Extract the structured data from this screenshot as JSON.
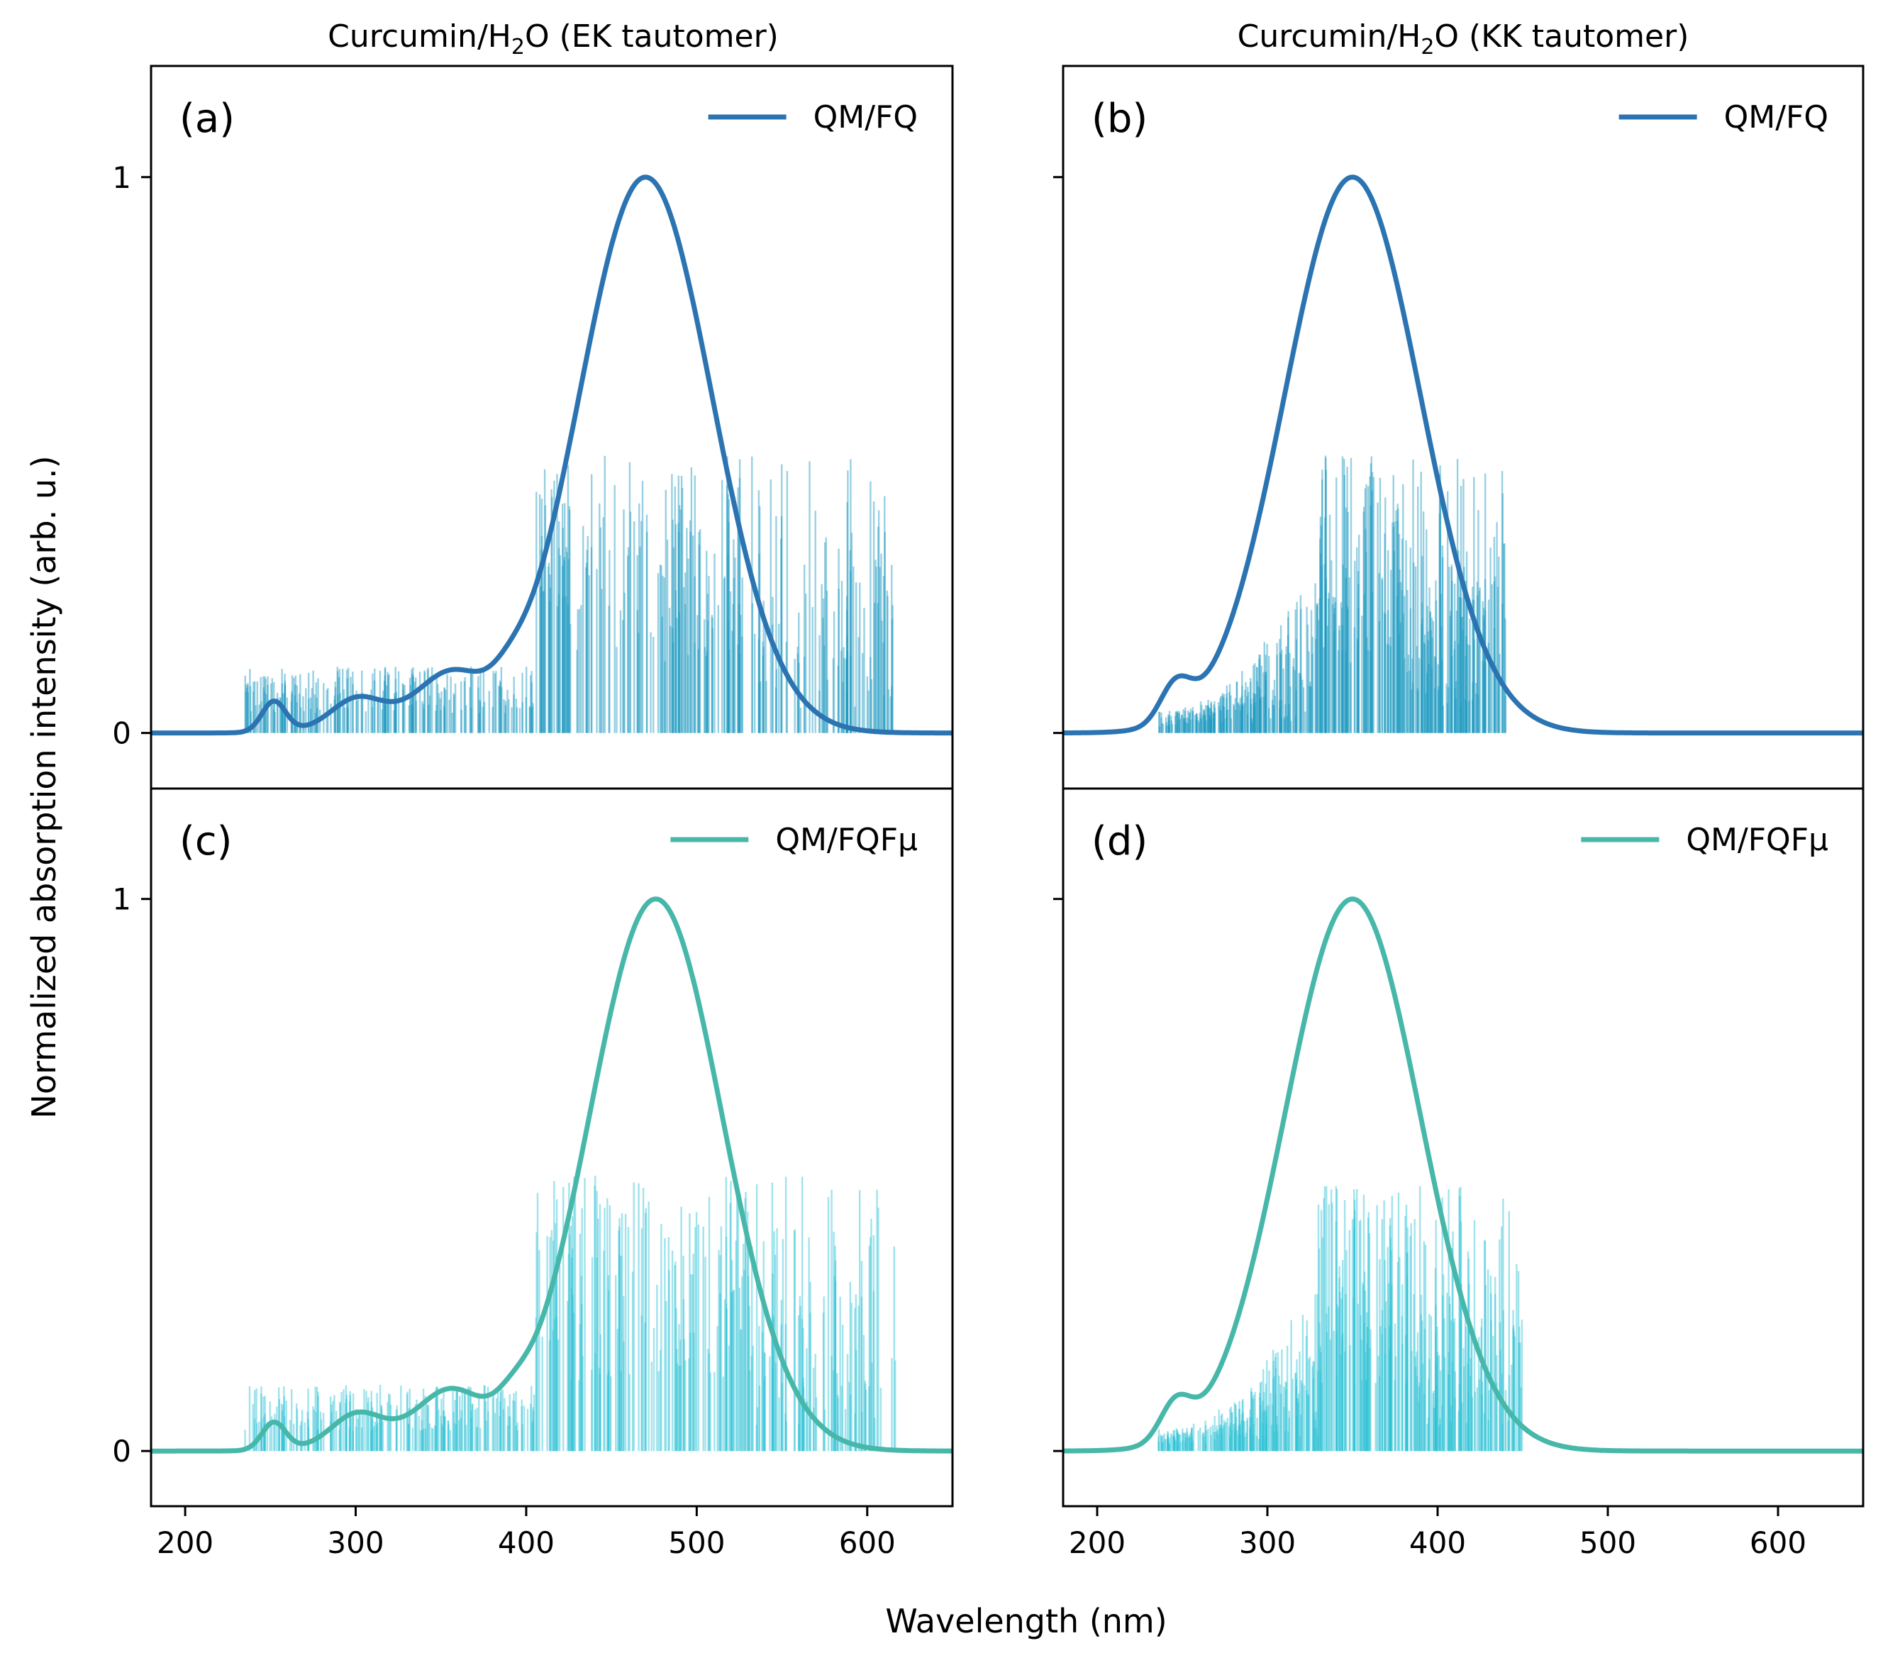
{
  "chart_data": {
    "type": "line",
    "xlabel": "Wavelength (nm)",
    "ylabel": "Normalized absorption intensity (arb. u.)",
    "xlim": [
      180,
      650
    ],
    "ylim": [
      -0.1,
      1.2
    ],
    "xticks": [
      200,
      300,
      400,
      500,
      600
    ],
    "yticks": [
      0,
      1
    ],
    "column_titles": [
      {
        "prefix": "Curcumin/H",
        "sub": "2",
        "suffix": "O (EK tautomer)"
      },
      {
        "prefix": "Curcumin/H",
        "sub": "2",
        "suffix": "O (KK tautomer)"
      }
    ],
    "panels": [
      {
        "label": "(a)",
        "legend": "QM/FQ",
        "line_color": "#2b74b1",
        "stick_color": "#1996be",
        "peaks": [
          {
            "center": 470,
            "width": 39,
            "height": 1.0
          },
          {
            "center": 356,
            "width": 18,
            "height": 0.085
          },
          {
            "center": 300,
            "width": 14,
            "height": 0.04
          },
          {
            "center": 252,
            "width": 7,
            "height": 0.055
          },
          {
            "center": 320,
            "width": 30,
            "height": 0.03
          },
          {
            "center": 390,
            "width": 10,
            "height": 0.025
          }
        ],
        "sticks": {
          "min": 235,
          "max": 615,
          "count": 520,
          "main_range": [
            425,
            530
          ],
          "main_height": 0.5,
          "low_height": 0.12
        }
      },
      {
        "label": "(b)",
        "legend": "QM/FQ",
        "line_color": "#2b74b1",
        "stick_color": "#1996be",
        "peaks": [
          {
            "center": 350,
            "width": 40,
            "height": 1.0
          },
          {
            "center": 246,
            "width": 9,
            "height": 0.065
          }
        ],
        "sticks": {
          "min": 236,
          "max": 440,
          "count": 520,
          "main_range": [
            330,
            380
          ],
          "main_height": 0.5,
          "low_height": 0.04
        }
      },
      {
        "label": "(c)",
        "legend": "QM/FQFμ",
        "line_color": "#47b7aa",
        "stick_color": "#2cc1d4",
        "peaks": [
          {
            "center": 476,
            "width": 39,
            "height": 1.0
          },
          {
            "center": 356,
            "width": 18,
            "height": 0.09
          },
          {
            "center": 300,
            "width": 14,
            "height": 0.045
          },
          {
            "center": 252,
            "width": 7,
            "height": 0.05
          },
          {
            "center": 320,
            "width": 30,
            "height": 0.03
          },
          {
            "center": 392,
            "width": 10,
            "height": 0.03
          }
        ],
        "sticks": {
          "min": 235,
          "max": 620,
          "count": 520,
          "main_range": [
            425,
            535
          ],
          "main_height": 0.5,
          "low_height": 0.12
        }
      },
      {
        "label": "(d)",
        "legend": "QM/FQFμ",
        "line_color": "#47b7aa",
        "stick_color": "#2cc1d4",
        "peaks": [
          {
            "center": 350,
            "width": 40,
            "height": 1.0
          },
          {
            "center": 246,
            "width": 9,
            "height": 0.065
          }
        ],
        "sticks": {
          "min": 236,
          "max": 450,
          "count": 520,
          "main_range": [
            330,
            385
          ],
          "main_height": 0.48,
          "low_height": 0.04
        }
      }
    ]
  }
}
